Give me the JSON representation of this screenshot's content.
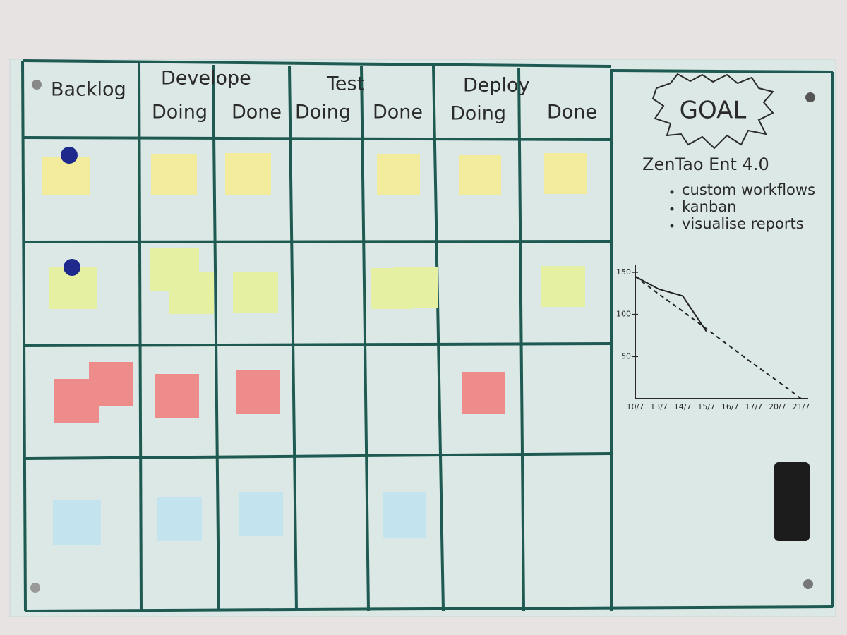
{
  "board": {
    "backlog": "Backlog",
    "groups": [
      {
        "name": "Develope",
        "subs": [
          "Doing",
          "Done"
        ]
      },
      {
        "name": "Test",
        "subs": [
          "Doing",
          "Done"
        ]
      },
      {
        "name": "Deploy",
        "subs": [
          "Doing",
          "Done"
        ]
      }
    ]
  },
  "goal": {
    "title": "GOAL",
    "product": "ZenTao Ent 4.0",
    "features": [
      "custom workflows",
      "kanban",
      "visualise reports"
    ]
  },
  "chart_data": {
    "type": "line",
    "x": [
      "10/7",
      "13/7",
      "14/7",
      "15/7",
      "16/7",
      "17/7",
      "20/7",
      "21/7"
    ],
    "series": [
      {
        "color": "#222222",
        "values": [
          145,
          130,
          122,
          80,
          null,
          null,
          null,
          null
        ]
      },
      {
        "color": "#222222",
        "dashed": true,
        "values": [
          145,
          124,
          104,
          83,
          62,
          41,
          21,
          0
        ]
      }
    ],
    "ylim": [
      0,
      155
    ],
    "yticks": [
      50,
      100,
      150
    ]
  }
}
